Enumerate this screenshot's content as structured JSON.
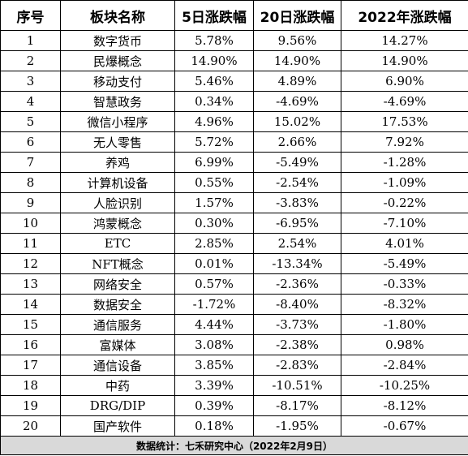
{
  "table": {
    "headers": [
      "序号",
      "板块名称",
      "5日涨跌幅",
      "20日涨跌幅",
      "2022年涨跌幅"
    ],
    "rows": [
      [
        "1",
        "数字货币",
        "5.78%",
        "9.56%",
        "14.27%"
      ],
      [
        "2",
        "民爆概念",
        "14.90%",
        "14.90%",
        "14.90%"
      ],
      [
        "3",
        "移动支付",
        "5.46%",
        "4.89%",
        "6.90%"
      ],
      [
        "4",
        "智慧政务",
        "0.34%",
        "-4.69%",
        "-4.69%"
      ],
      [
        "5",
        "微信小程序",
        "4.96%",
        "15.02%",
        "17.53%"
      ],
      [
        "6",
        "无人零售",
        "5.72%",
        "2.66%",
        "7.92%"
      ],
      [
        "7",
        "养鸡",
        "6.99%",
        "-5.49%",
        "-1.28%"
      ],
      [
        "8",
        "计算机设备",
        "0.55%",
        "-2.54%",
        "-1.09%"
      ],
      [
        "9",
        "人脸识别",
        "1.57%",
        "-3.83%",
        "-0.22%"
      ],
      [
        "10",
        "鸿蒙概念",
        "0.30%",
        "-6.95%",
        "-7.10%"
      ],
      [
        "11",
        "ETC",
        "2.85%",
        "2.54%",
        "4.01%"
      ],
      [
        "12",
        "NFT概念",
        "0.01%",
        "-13.34%",
        "-5.49%"
      ],
      [
        "13",
        "网络安全",
        "0.57%",
        "-2.36%",
        "-0.33%"
      ],
      [
        "14",
        "数据安全",
        "-1.72%",
        "-8.40%",
        "-8.32%"
      ],
      [
        "15",
        "通信服务",
        "4.44%",
        "-3.73%",
        "-1.80%"
      ],
      [
        "16",
        "富媒体",
        "3.08%",
        "-2.38%",
        "0.98%"
      ],
      [
        "17",
        "通信设备",
        "3.85%",
        "-2.83%",
        "-2.84%"
      ],
      [
        "18",
        "中药",
        "3.39%",
        "-10.51%",
        "-10.25%"
      ],
      [
        "19",
        "DRG/DIP",
        "0.39%",
        "-8.17%",
        "-8.12%"
      ],
      [
        "20",
        "国产软件",
        "0.18%",
        "-1.95%",
        "-0.67%"
      ]
    ],
    "footer": "数据统计：七禾研究中心（2022年2月9日）"
  }
}
